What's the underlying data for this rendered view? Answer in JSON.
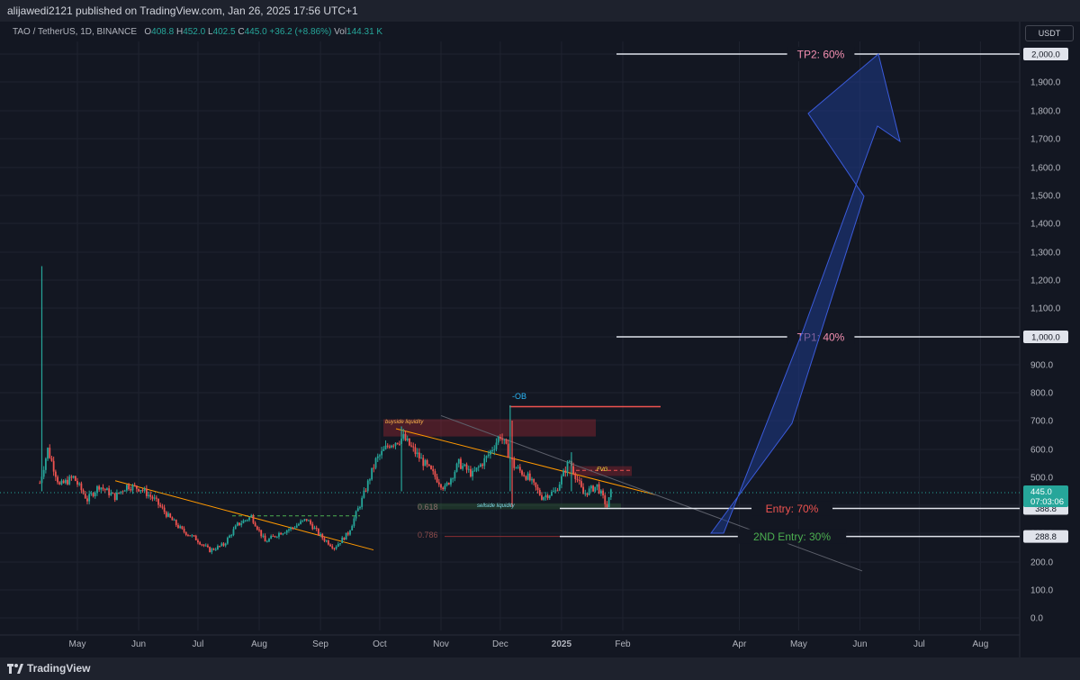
{
  "header": {
    "publish_line": "alijawedi2121 published on TradingView.com, Jan 26, 2025 17:56 UTC+1"
  },
  "legend": {
    "symbol": "TAO / TetherUS, 1D, BINANCE",
    "o_label": "O",
    "o_value": "408.8",
    "h_label": "H",
    "h_value": "452.0",
    "l_label": "L",
    "l_value": "402.5",
    "c_label": "C",
    "c_value": "445.0",
    "change": "+36.2 (+8.86%)",
    "vol_label": "Vol",
    "vol_value": "144.31 K"
  },
  "currency_button": "USDT",
  "footer": {
    "brand": "TradingView"
  },
  "colors": {
    "up": "#26a69a",
    "down": "#ef5350",
    "trend": "#ff9800",
    "tp": "#f48fb1",
    "entry": "#ef5350",
    "entry2": "#4caf50",
    "arrow": "#1e3a8a"
  },
  "chart_data": {
    "type": "candlestick",
    "y_axis": {
      "min": 0,
      "max": 2000,
      "ticks": [
        "0.0",
        "100.0",
        "200.0",
        "300.0",
        "400.0",
        "500.0",
        "600.0",
        "700.0",
        "800.0",
        "900.0",
        "1,000.0",
        "1,100.0",
        "1,200.0",
        "1,300.0",
        "1,400.0",
        "1,500.0",
        "1,600.0",
        "1,700.0",
        "1,800.0",
        "1,900.0",
        "2,000.0"
      ]
    },
    "x_axis": {
      "labels": [
        "May",
        "Jun",
        "Jul",
        "Aug",
        "Sep",
        "Oct",
        "Nov",
        "Dec",
        "2025",
        "Feb",
        "Apr",
        "May",
        "Jun",
        "Jul",
        "Aug"
      ]
    },
    "close_path": [
      [
        "2024-04-12",
        480
      ],
      [
        "2024-04-16",
        600
      ],
      [
        "2024-04-22",
        470
      ],
      [
        "2024-04-29",
        500
      ],
      [
        "2024-05-06",
        420
      ],
      [
        "2024-05-12",
        470
      ],
      [
        "2024-05-20",
        430
      ],
      [
        "2024-05-26",
        470
      ],
      [
        "2024-06-02",
        460
      ],
      [
        "2024-06-09",
        420
      ],
      [
        "2024-06-16",
        360
      ],
      [
        "2024-06-23",
        310
      ],
      [
        "2024-06-30",
        280
      ],
      [
        "2024-07-07",
        240
      ],
      [
        "2024-07-14",
        260
      ],
      [
        "2024-07-21",
        330
      ],
      [
        "2024-07-28",
        360
      ],
      [
        "2024-08-04",
        270
      ],
      [
        "2024-08-11",
        300
      ],
      [
        "2024-08-18",
        320
      ],
      [
        "2024-08-25",
        350
      ],
      [
        "2024-09-01",
        290
      ],
      [
        "2024-09-08",
        250
      ],
      [
        "2024-09-15",
        300
      ],
      [
        "2024-09-22",
        420
      ],
      [
        "2024-09-29",
        560
      ],
      [
        "2024-10-06",
        620
      ],
      [
        "2024-10-13",
        640
      ],
      [
        "2024-10-20",
        580
      ],
      [
        "2024-10-27",
        520
      ],
      [
        "2024-11-03",
        460
      ],
      [
        "2024-11-10",
        550
      ],
      [
        "2024-11-17",
        510
      ],
      [
        "2024-11-24",
        570
      ],
      [
        "2024-12-01",
        650
      ],
      [
        "2024-12-08",
        540
      ],
      [
        "2024-12-15",
        500
      ],
      [
        "2024-12-22",
        430
      ],
      [
        "2024-12-29",
        450
      ],
      [
        "2025-01-05",
        560
      ],
      [
        "2025-01-12",
        440
      ],
      [
        "2025-01-19",
        470
      ],
      [
        "2025-01-24",
        395
      ],
      [
        "2025-01-26",
        445
      ]
    ],
    "wick_highs": [
      [
        "2024-04-13",
        1250
      ],
      [
        "2024-12-06",
        755
      ],
      [
        "2024-10-12",
        680
      ],
      [
        "2025-01-06",
        590
      ]
    ],
    "levels": {
      "tp2": {
        "label": "TP2: 60%",
        "value": 2000,
        "price_tag": "2,000.0"
      },
      "tp1": {
        "label": "TP1: 40%",
        "value": 1000,
        "price_tag": "1,000.0"
      },
      "entry": {
        "label": "Entry: 70%",
        "value": 388.8,
        "price_tag": "388.8"
      },
      "entry2": {
        "label": "2ND Entry: 30%",
        "value": 288.8,
        "price_tag": "288.8"
      },
      "last_price": {
        "value": 445.0,
        "price_tag": "445.0",
        "countdown": "07:03:06"
      }
    },
    "annotations": {
      "fib_618": "0.618",
      "fib_786": "0.786",
      "buyside": "buyside liquidity",
      "sellside": "sellside liquidity",
      "ob": "-OB",
      "fvg": "FVG"
    }
  }
}
